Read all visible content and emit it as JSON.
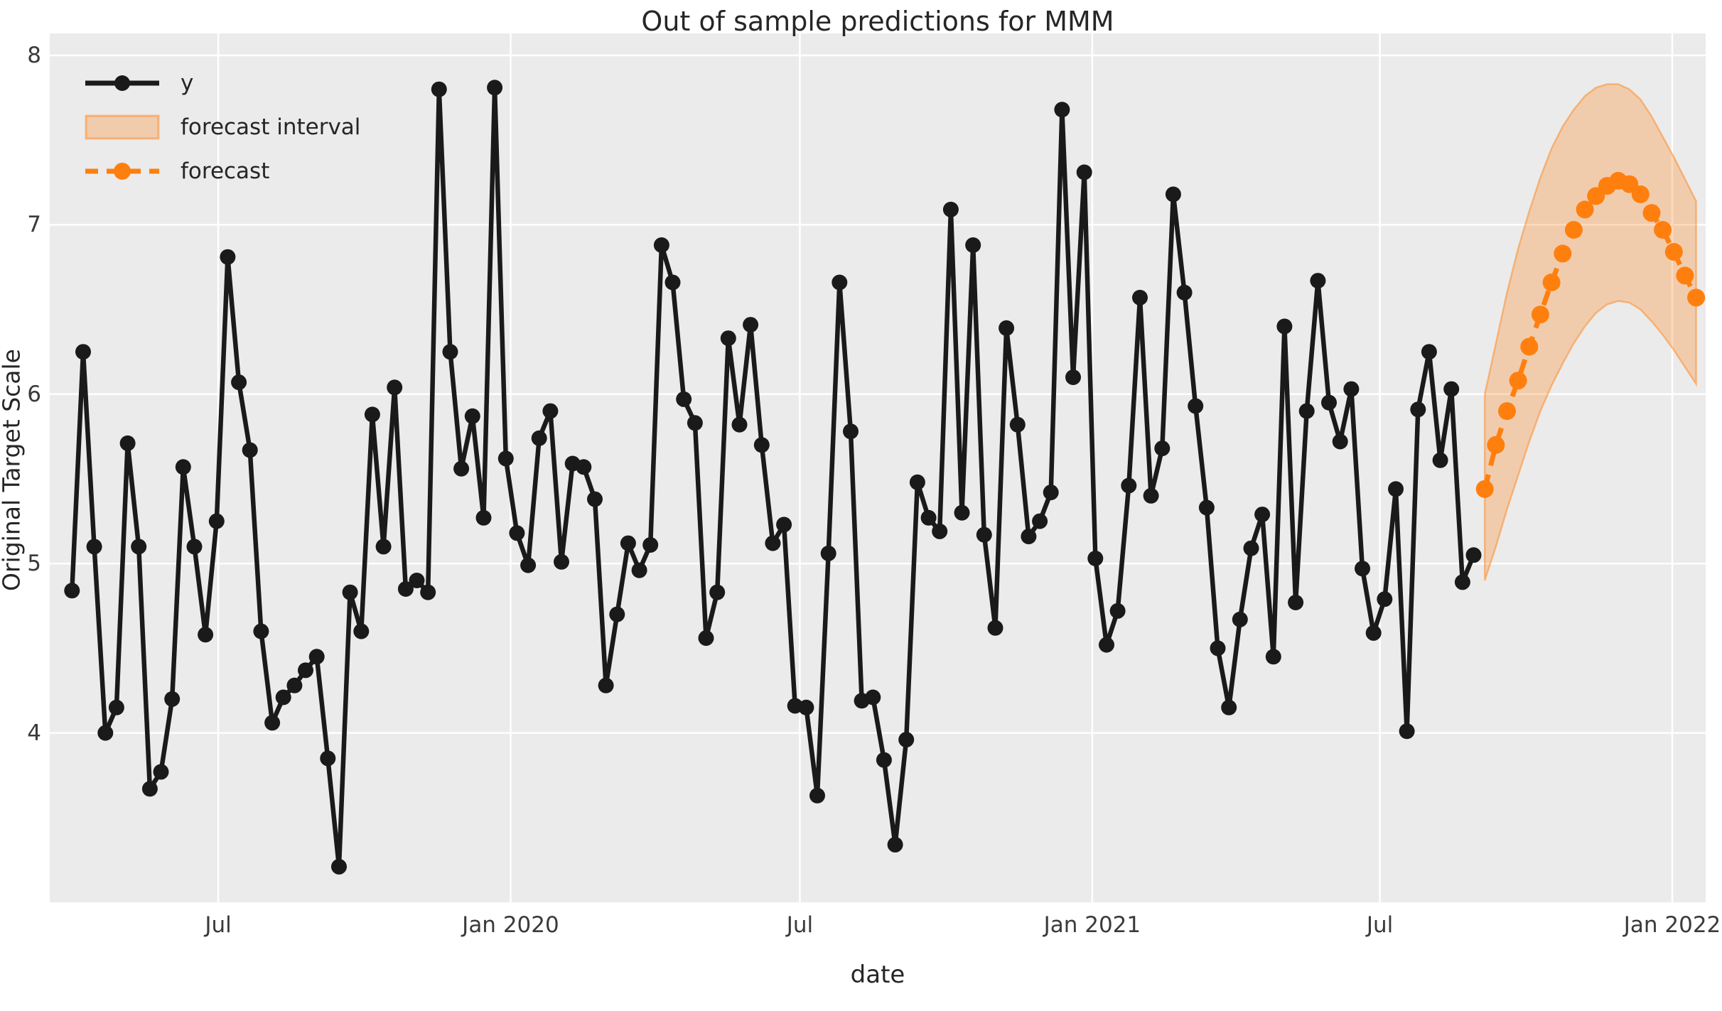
{
  "chart_data": {
    "type": "line",
    "title": "Out of sample predictions for MMM",
    "xlabel": "date",
    "ylabel": "Original Target Scale",
    "ylim": [
      3.0,
      8.13
    ],
    "xlim": [
      "2019-03-17",
      "2022-01-22"
    ],
    "yticks": [
      4,
      5,
      6,
      7,
      8
    ],
    "xticks": [
      {
        "date": "2019-07-01",
        "line1": "Jul",
        "line2": ""
      },
      {
        "date": "2020-01-01",
        "line1": "Jan",
        "line2": "2020"
      },
      {
        "date": "2020-07-01",
        "line1": "Jul",
        "line2": ""
      },
      {
        "date": "2021-01-01",
        "line1": "Jan",
        "line2": "2021"
      },
      {
        "date": "2021-07-01",
        "line1": "Jul",
        "line2": ""
      },
      {
        "date": "2022-01-01",
        "line1": "Jan",
        "line2": "2022"
      }
    ],
    "grid": true,
    "legend_position": "upper left",
    "legend_items": [
      {
        "label": "y"
      },
      {
        "label": "forecast interval"
      },
      {
        "label": "forecast"
      }
    ],
    "colors": {
      "axes_background": "#ebebeb",
      "gridline": "#ffffff",
      "y_series": "#1a1a1a",
      "forecast_series": "#ff7f0e",
      "forecast_band_fill": "rgba(255,127,14,0.28)",
      "forecast_band_edge": "rgba(255,127,14,0.45)",
      "text": "#262626"
    },
    "series": [
      {
        "name": "y",
        "style": "solid",
        "marker": "circle",
        "start_date": "2019-03-31",
        "freq_days": 7,
        "values": [
          4.84,
          6.25,
          5.1,
          4.0,
          4.15,
          5.71,
          5.1,
          3.67,
          3.77,
          4.2,
          5.57,
          5.1,
          4.58,
          5.25,
          6.81,
          6.07,
          5.67,
          4.6,
          4.06,
          4.21,
          4.28,
          4.37,
          4.45,
          3.85,
          3.21,
          4.83,
          4.6,
          5.88,
          5.1,
          6.04,
          4.85,
          4.9,
          4.83,
          7.8,
          6.25,
          5.56,
          5.87,
          5.27,
          7.81,
          5.62,
          5.18,
          4.99,
          5.74,
          5.9,
          5.01,
          5.59,
          5.57,
          5.38,
          4.28,
          4.7,
          5.12,
          4.96,
          5.11,
          6.88,
          6.66,
          5.97,
          5.83,
          4.56,
          4.83,
          6.33,
          5.82,
          6.41,
          5.7,
          5.12,
          5.23,
          4.16,
          4.15,
          3.63,
          5.06,
          6.66,
          5.78,
          4.19,
          4.21,
          3.84,
          3.34,
          3.96,
          5.48,
          5.27,
          5.19,
          7.09,
          5.3,
          6.88,
          5.17,
          4.62,
          6.39,
          5.82,
          5.16,
          5.25,
          5.42,
          7.68,
          6.1,
          7.31,
          5.03,
          4.52,
          4.72,
          5.46,
          6.57,
          5.4,
          5.68,
          7.18,
          6.6,
          5.93,
          5.33,
          4.5,
          4.15,
          4.67,
          5.09,
          5.29,
          4.45,
          6.4,
          4.77,
          5.9,
          6.67,
          5.95,
          5.72,
          6.03,
          4.97,
          4.59,
          4.79,
          5.44,
          4.01,
          5.91,
          6.25,
          5.61,
          6.03,
          4.89,
          5.05
        ]
      },
      {
        "name": "forecast",
        "style": "dashed",
        "marker": "circle",
        "start_date": "2021-09-05",
        "freq_days": 7,
        "values": [
          5.44,
          5.7,
          5.9,
          6.08,
          6.28,
          6.47,
          6.66,
          6.83,
          6.97,
          7.09,
          7.17,
          7.23,
          7.26,
          7.24,
          7.18,
          7.07,
          6.97,
          6.84,
          6.7,
          6.57
        ]
      }
    ],
    "band": {
      "name": "forecast interval",
      "start_date": "2021-09-05",
      "freq_days": 7,
      "upper": [
        6.0,
        6.3,
        6.6,
        6.86,
        7.08,
        7.28,
        7.45,
        7.58,
        7.68,
        7.76,
        7.81,
        7.83,
        7.83,
        7.8,
        7.74,
        7.64,
        7.52,
        7.4,
        7.27,
        7.14
      ],
      "lower": [
        4.9,
        5.1,
        5.32,
        5.52,
        5.72,
        5.9,
        6.05,
        6.18,
        6.3,
        6.4,
        6.48,
        6.53,
        6.55,
        6.54,
        6.5,
        6.43,
        6.35,
        6.26,
        6.16,
        6.06
      ]
    }
  }
}
